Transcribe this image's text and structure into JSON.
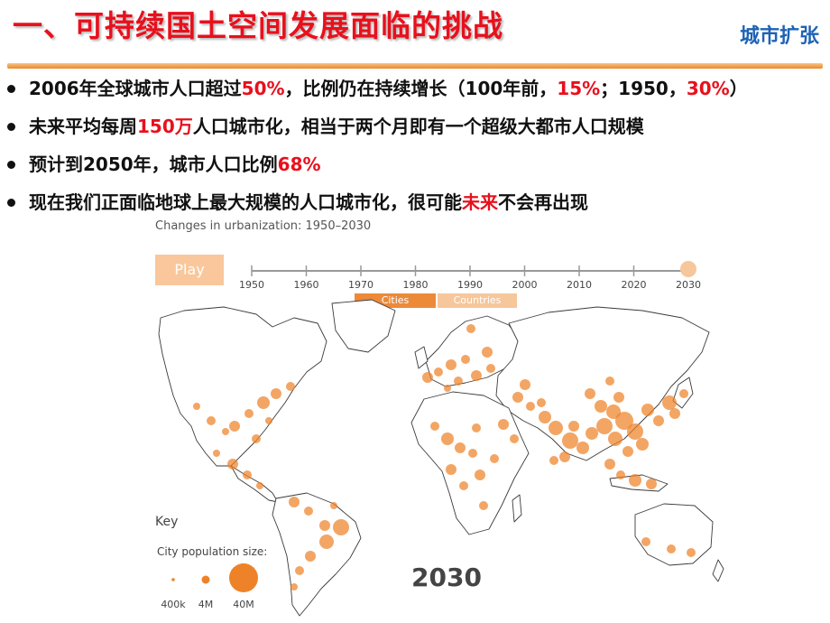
{
  "slide": {
    "title": "一、可持续国土空间发展面临的挑战",
    "section_tag": "城市扩张",
    "bullets": [
      {
        "segments": [
          {
            "text": "2006年全球城市人口超过",
            "highlight": false
          },
          {
            "text": "50%",
            "highlight": true
          },
          {
            "text": "，比例仍在持续增长（100年前，",
            "highlight": false
          },
          {
            "text": "15%",
            "highlight": true
          },
          {
            "text": "；1950，",
            "highlight": false
          },
          {
            "text": "30%",
            "highlight": true
          },
          {
            "text": "）",
            "highlight": false
          }
        ]
      },
      {
        "segments": [
          {
            "text": "未来平均每周",
            "highlight": false
          },
          {
            "text": "150万",
            "highlight": true
          },
          {
            "text": "人口城市化，相当于两个月即有一个超级大都市人口规模",
            "highlight": false
          }
        ]
      },
      {
        "segments": [
          {
            "text": "预计到2050年，城市人口比例",
            "highlight": false
          },
          {
            "text": "68%",
            "highlight": true
          }
        ]
      },
      {
        "segments": [
          {
            "text": "现在我们正面临地球上最大规模的人口城市化，很可能",
            "highlight": false
          },
          {
            "text": "未来",
            "highlight": true
          },
          {
            "text": "不会再出现",
            "highlight": false
          }
        ]
      }
    ]
  },
  "figure": {
    "title": "Changes in urbanization: 1950–2030",
    "play_label": "Play",
    "timeline_years": [
      "1950",
      "1960",
      "1970",
      "1980",
      "1990",
      "2000",
      "2010",
      "2020",
      "2030"
    ],
    "eras": [
      {
        "label": "Cities",
        "color": "#ec8a3a"
      },
      {
        "label": "Countries",
        "color": "#f6c79b"
      }
    ],
    "current_year": "2030",
    "key": {
      "title": "Key",
      "subtitle": "City population size:",
      "sizes": [
        "400k",
        "4M",
        "40M"
      ]
    },
    "colors": {
      "marker": "#ee8228",
      "land_stroke": "#3a3a3a"
    }
  }
}
